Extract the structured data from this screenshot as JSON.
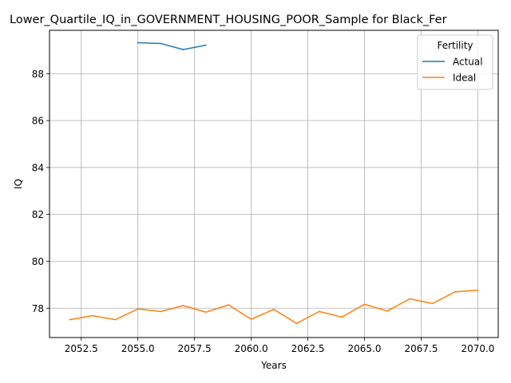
{
  "chart_data": {
    "type": "line",
    "title": "Lower_Quartile_IQ_in_GOVERNMENT_HOUSING_POOR_Sample for Black_Fer",
    "xlabel": "Years",
    "ylabel": "IQ",
    "xlim": [
      2051.1,
      2070.9
    ],
    "ylim": [
      76.75,
      89.85
    ],
    "xticks": [
      2052.5,
      2055.0,
      2057.5,
      2060.0,
      2062.5,
      2065.0,
      2067.5,
      2070.0
    ],
    "xtick_labels": [
      "2052.5",
      "2055.0",
      "2057.5",
      "2060.0",
      "2062.5",
      "2065.0",
      "2067.5",
      "2070.0"
    ],
    "yticks": [
      78,
      80,
      82,
      84,
      86,
      88
    ],
    "ytick_labels": [
      "78",
      "80",
      "82",
      "84",
      "86",
      "88"
    ],
    "grid": true,
    "legend": {
      "title": "Fertility",
      "placement": "top-right"
    },
    "series": [
      {
        "name": "Actual",
        "color": "#1f77b4",
        "x": [
          2055,
          2056,
          2057,
          2058
        ],
        "values": [
          89.32,
          89.29,
          89.03,
          89.22
        ]
      },
      {
        "name": "Ideal",
        "color": "#ff7f0e",
        "x": [
          2052,
          2053,
          2054,
          2055,
          2056,
          2057,
          2058,
          2059,
          2060,
          2061,
          2062,
          2063,
          2064,
          2065,
          2066,
          2067,
          2068,
          2069,
          2070
        ],
        "values": [
          77.51,
          77.68,
          77.51,
          77.97,
          77.86,
          78.11,
          77.83,
          78.14,
          77.53,
          77.95,
          77.35,
          77.86,
          77.62,
          78.17,
          77.88,
          78.4,
          78.2,
          78.7,
          78.77
        ]
      }
    ]
  }
}
